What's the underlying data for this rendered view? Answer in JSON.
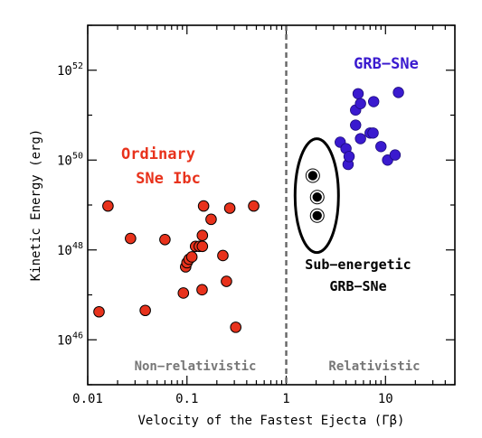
{
  "chart_data": {
    "type": "scatter",
    "x_scale": "log",
    "y_scale": "log",
    "xlim": [
      0.01,
      50
    ],
    "ylim": [
      1e+45,
      1e+53
    ],
    "xlabel": "Velocity of the Fastest Ejecta (Γβ)",
    "ylabel": "Kinetic Energy (erg)",
    "x_ticks": [
      {
        "value": 0.01,
        "label": "0.01"
      },
      {
        "value": 0.1,
        "label": "0.1"
      },
      {
        "value": 1,
        "label": "1"
      },
      {
        "value": 10,
        "label": "10"
      }
    ],
    "y_ticks": [
      {
        "value": 1e+46,
        "base": "10",
        "exp": "46"
      },
      {
        "value": 1e+48,
        "base": "10",
        "exp": "48"
      },
      {
        "value": 1e+50,
        "base": "10",
        "exp": "50"
      },
      {
        "value": 1e+52,
        "base": "10",
        "exp": "52"
      }
    ],
    "divider_x": 1,
    "series": [
      {
        "name": "Ordinary SNe Ibc",
        "color": "#e8321c",
        "points": [
          [
            0.013,
            4.2e+46
          ],
          [
            0.016,
            9.5e+48
          ],
          [
            0.027,
            1.8e+48
          ],
          [
            0.038,
            4.5e+46
          ],
          [
            0.06,
            1.7e+48
          ],
          [
            0.092,
            1.1e+47
          ],
          [
            0.097,
            4.2e+47
          ],
          [
            0.1,
            5.2e+47
          ],
          [
            0.105,
            6.2e+47
          ],
          [
            0.112,
            7e+47
          ],
          [
            0.122,
            1.2e+48
          ],
          [
            0.133,
            1.2e+48
          ],
          [
            0.143,
            2.1e+48
          ],
          [
            0.147,
            9.5e+48
          ],
          [
            0.142,
            1.3e+47
          ],
          [
            0.143,
            1.2e+48
          ],
          [
            0.175,
            4.8e+48
          ],
          [
            0.23,
            7.5e+47
          ],
          [
            0.25,
            2e+47
          ],
          [
            0.27,
            8.5e+48
          ],
          [
            0.31,
            1.9e+46
          ],
          [
            0.47,
            9.5e+48
          ]
        ]
      },
      {
        "name": "GRB-SNe",
        "color": "#3a1acf",
        "points": [
          [
            3.5,
            2.5e+50
          ],
          [
            4.0,
            1.8e+50
          ],
          [
            4.2,
            8e+49
          ],
          [
            4.3,
            1.2e+50
          ],
          [
            5.0,
            6e+50
          ],
          [
            5.0,
            1.3e+51
          ],
          [
            5.3,
            3e+51
          ],
          [
            5.6,
            1.8e+51
          ],
          [
            5.6,
            3e+50
          ],
          [
            7.0,
            4e+50
          ],
          [
            7.5,
            4e+50
          ],
          [
            7.6,
            2e+51
          ],
          [
            9.0,
            2e+50
          ],
          [
            10.5,
            1e+50
          ],
          [
            12.5,
            1.3e+50
          ],
          [
            13.5,
            3.2e+51
          ]
        ]
      },
      {
        "name": "Sub-energetic GRB-SNe",
        "color": "#000000",
        "points": [
          [
            1.8,
            1.8e+49
          ],
          [
            2.0,
            1.8e+49
          ],
          [
            2.0,
            1.8e+49
          ]
        ]
      }
    ],
    "annotations": {
      "ordinary": [
        "Ordinary",
        "SNe Ibc"
      ],
      "grb": "GRB−SNe",
      "sub": [
        "Sub−energetic",
        "GRB−SNe"
      ],
      "nonrel": "Non−relativistic",
      "rel": "Relativistic"
    }
  }
}
